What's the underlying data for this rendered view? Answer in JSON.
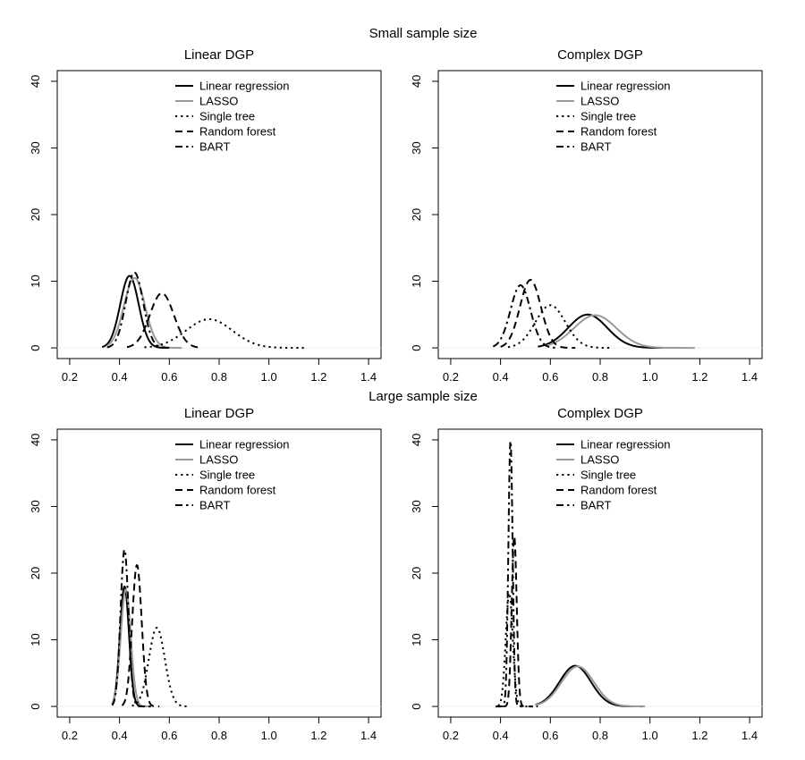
{
  "figure": {
    "section_titles": [
      "Small sample size",
      "Large sample size"
    ]
  },
  "chart_data": [
    {
      "type": "line",
      "title": "Linear DGP",
      "section": "Small sample size",
      "xlim": [
        0.15,
        1.45
      ],
      "ylim": [
        -1.6,
        41.6
      ],
      "xticks": [
        0.2,
        0.4,
        0.6,
        0.8,
        1.0,
        1.2,
        1.4
      ],
      "xtick_labels": [
        "0.2",
        "0.4",
        "0.6",
        "0.8",
        "1.0",
        "1.2",
        "1.4"
      ],
      "yticks": [
        0,
        10,
        20,
        30,
        40
      ],
      "ytick_labels": [
        "0",
        "10",
        "20",
        "30",
        "40"
      ],
      "xlabel": "",
      "ylabel": "",
      "legend": {
        "position": "top-center",
        "entries": [
          "Linear regression",
          "LASSO",
          "Single tree",
          "Random forest",
          "BART"
        ]
      },
      "series": [
        {
          "name": "Linear regression",
          "kind": "density",
          "mean": 0.44,
          "sd": 0.037,
          "peak": 10.8,
          "range": [
            0.33,
            0.6
          ]
        },
        {
          "name": "LASSO",
          "kind": "density",
          "mean": 0.46,
          "sd": 0.042,
          "peak": 10.5,
          "range": [
            0.35,
            0.65
          ]
        },
        {
          "name": "Single tree",
          "kind": "density",
          "mean": 0.76,
          "sd": 0.093,
          "peak": 4.3,
          "range": [
            0.5,
            1.14
          ]
        },
        {
          "name": "Random forest",
          "kind": "density",
          "mean": 0.57,
          "sd": 0.048,
          "peak": 8.2,
          "range": [
            0.43,
            0.72
          ]
        },
        {
          "name": "BART",
          "kind": "density",
          "mean": 0.46,
          "sd": 0.035,
          "peak": 11.3,
          "range": [
            0.35,
            0.6
          ]
        }
      ]
    },
    {
      "type": "line",
      "title": "Complex DGP",
      "section": "Small sample size",
      "xlim": [
        0.15,
        1.45
      ],
      "ylim": [
        -1.6,
        41.6
      ],
      "xticks": [
        0.2,
        0.4,
        0.6,
        0.8,
        1.0,
        1.2,
        1.4
      ],
      "xtick_labels": [
        "0.2",
        "0.4",
        "0.6",
        "0.8",
        "1.0",
        "1.2",
        "1.4"
      ],
      "yticks": [
        0,
        10,
        20,
        30,
        40
      ],
      "ytick_labels": [
        "0",
        "10",
        "20",
        "30",
        "40"
      ],
      "xlabel": "",
      "ylabel": "",
      "legend": {
        "position": "top-center",
        "entries": [
          "Linear regression",
          "LASSO",
          "Single tree",
          "Random forest",
          "BART"
        ]
      },
      "series": [
        {
          "name": "Linear regression",
          "kind": "density",
          "mean": 0.75,
          "sd": 0.078,
          "peak": 5.0,
          "range": [
            0.55,
            1.05
          ]
        },
        {
          "name": "LASSO",
          "kind": "density",
          "mean": 0.78,
          "sd": 0.085,
          "peak": 4.9,
          "range": [
            0.58,
            1.18
          ]
        },
        {
          "name": "Single tree",
          "kind": "density",
          "mean": 0.6,
          "sd": 0.06,
          "peak": 6.4,
          "range": [
            0.43,
            0.85
          ]
        },
        {
          "name": "Random forest",
          "kind": "density",
          "mean": 0.52,
          "sd": 0.042,
          "peak": 10.2,
          "range": [
            0.4,
            0.7
          ]
        },
        {
          "name": "BART",
          "kind": "density",
          "mean": 0.48,
          "sd": 0.04,
          "peak": 9.4,
          "range": [
            0.37,
            0.62
          ]
        }
      ]
    },
    {
      "type": "line",
      "title": "Linear DGP",
      "section": "Large sample size",
      "xlim": [
        0.15,
        1.45
      ],
      "ylim": [
        -1.6,
        41.6
      ],
      "xticks": [
        0.2,
        0.4,
        0.6,
        0.8,
        1.0,
        1.2,
        1.4
      ],
      "xtick_labels": [
        "0.2",
        "0.4",
        "0.6",
        "0.8",
        "1.0",
        "1.2",
        "1.4"
      ],
      "yticks": [
        0,
        10,
        20,
        30,
        40
      ],
      "ytick_labels": [
        "0",
        "10",
        "20",
        "30",
        "40"
      ],
      "xlabel": "",
      "ylabel": "",
      "legend": {
        "position": "top-center",
        "entries": [
          "Linear regression",
          "LASSO",
          "Single tree",
          "Random forest",
          "BART"
        ]
      },
      "series": [
        {
          "name": "Linear regression",
          "kind": "density",
          "mean": 0.42,
          "sd": 0.018,
          "peak": 18.0,
          "range": [
            0.37,
            0.5
          ]
        },
        {
          "name": "LASSO",
          "kind": "density",
          "mean": 0.425,
          "sd": 0.02,
          "peak": 17.5,
          "range": [
            0.37,
            0.52
          ]
        },
        {
          "name": "Single tree",
          "kind": "density",
          "mean": 0.55,
          "sd": 0.032,
          "peak": 11.8,
          "range": [
            0.45,
            0.67
          ]
        },
        {
          "name": "Random forest",
          "kind": "density",
          "mean": 0.47,
          "sd": 0.019,
          "peak": 21.2,
          "range": [
            0.41,
            0.56
          ]
        },
        {
          "name": "BART",
          "kind": "density",
          "mean": 0.42,
          "sd": 0.016,
          "peak": 23.5,
          "range": [
            0.37,
            0.53
          ]
        }
      ]
    },
    {
      "type": "line",
      "title": "Complex DGP",
      "section": "Large sample size",
      "xlim": [
        0.15,
        1.45
      ],
      "ylim": [
        -1.6,
        41.6
      ],
      "xticks": [
        0.2,
        0.4,
        0.6,
        0.8,
        1.0,
        1.2,
        1.4
      ],
      "xtick_labels": [
        "0.2",
        "0.4",
        "0.6",
        "0.8",
        "1.0",
        "1.2",
        "1.4"
      ],
      "yticks": [
        0,
        10,
        20,
        30,
        40
      ],
      "ytick_labels": [
        "0",
        "10",
        "20",
        "30",
        "40"
      ],
      "xlabel": "",
      "ylabel": "",
      "legend": {
        "position": "top-center",
        "entries": [
          "Linear regression",
          "LASSO",
          "Single tree",
          "Random forest",
          "BART"
        ]
      },
      "series": [
        {
          "name": "Linear regression",
          "kind": "density",
          "mean": 0.7,
          "sd": 0.063,
          "peak": 6.1,
          "range": [
            0.54,
            0.97
          ]
        },
        {
          "name": "LASSO",
          "kind": "density",
          "mean": 0.71,
          "sd": 0.065,
          "peak": 6.0,
          "range": [
            0.54,
            0.98
          ]
        },
        {
          "name": "Single tree",
          "kind": "density",
          "mean": 0.435,
          "sd": 0.014,
          "peak": 17.0,
          "range": [
            0.39,
            0.55
          ]
        },
        {
          "name": "Random forest",
          "kind": "density",
          "mean": 0.455,
          "sd": 0.01,
          "peak": 25.5,
          "range": [
            0.41,
            0.53
          ]
        },
        {
          "name": "BART",
          "kind": "density",
          "mean": 0.44,
          "sd": 0.0085,
          "peak": 39.8,
          "range": [
            0.38,
            0.5
          ]
        }
      ]
    }
  ]
}
